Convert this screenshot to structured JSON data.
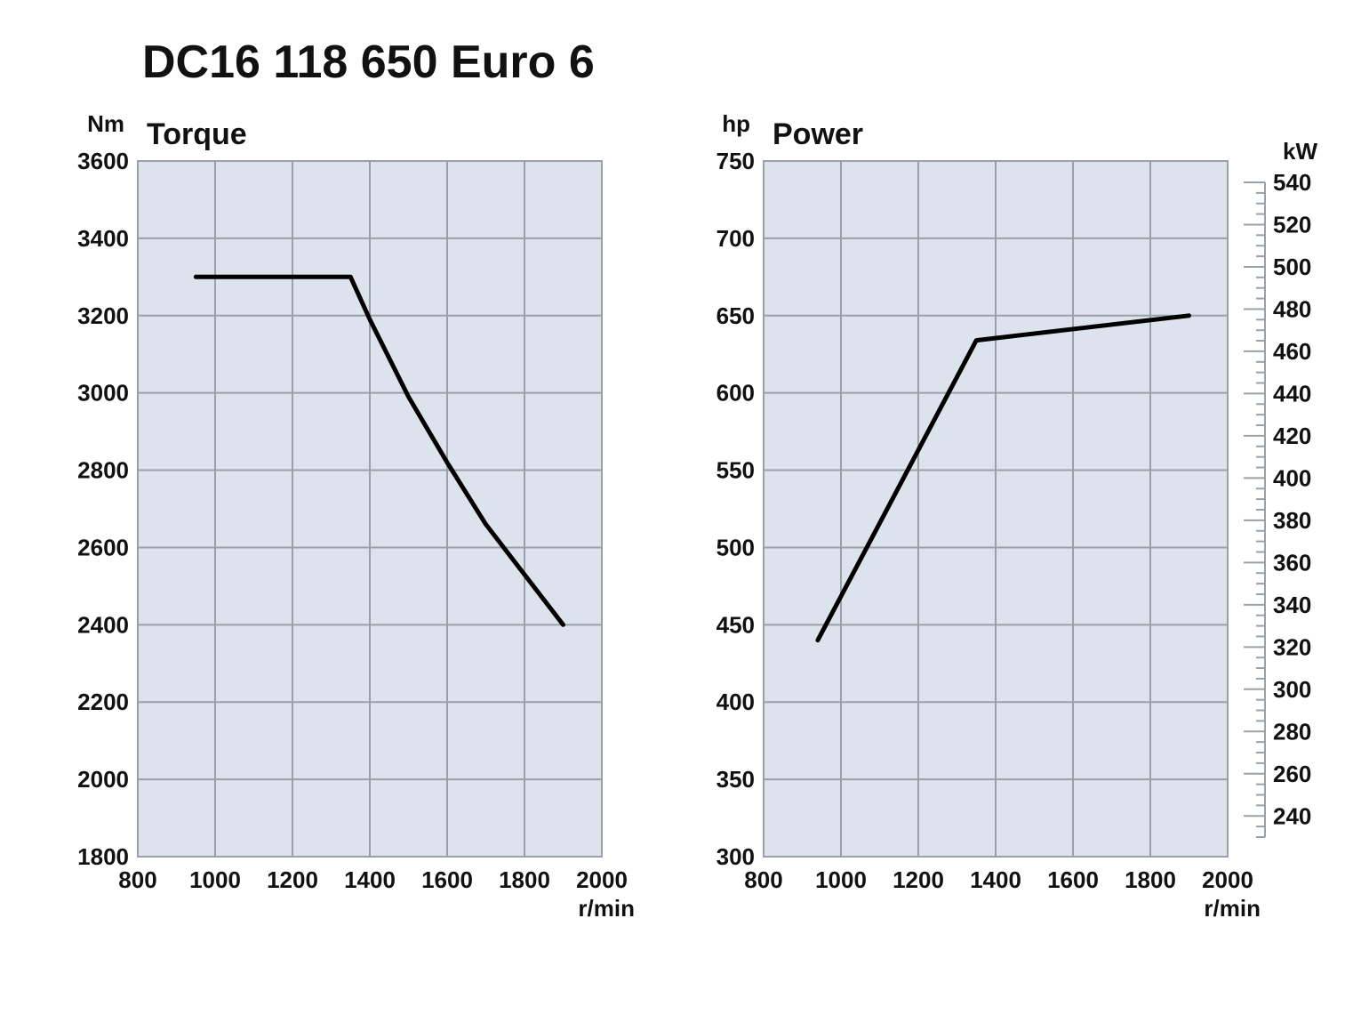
{
  "page": {
    "title": "DC16 118 650 Euro 6"
  },
  "colors": {
    "plot_background": "#dce3ec",
    "grid": "#9aa0a8",
    "curve": "#000000",
    "text": "#111111"
  },
  "chart_data": [
    {
      "type": "line",
      "title": "Torque",
      "ylabel": "Nm",
      "xlabel": "r/min",
      "xlim": [
        800,
        2000
      ],
      "ylim": [
        1800,
        3600
      ],
      "x_ticks": [
        800,
        1000,
        1200,
        1400,
        1600,
        1800,
        2000
      ],
      "y_ticks": [
        1800,
        2000,
        2200,
        2400,
        2600,
        2800,
        3000,
        3200,
        3400,
        3600
      ],
      "grid": true,
      "series": [
        {
          "x": [
            950,
            1350,
            1400,
            1500,
            1600,
            1700,
            1800,
            1900
          ],
          "y": [
            3300,
            3300,
            3190,
            2990,
            2820,
            2660,
            2530,
            2400
          ]
        }
      ]
    },
    {
      "type": "line",
      "title": "Power",
      "ylabel": "hp",
      "y2label": "kW",
      "xlabel": "r/min",
      "xlim": [
        800,
        2000
      ],
      "ylim": [
        300,
        750
      ],
      "x_ticks": [
        800,
        1000,
        1200,
        1400,
        1600,
        1800,
        2000
      ],
      "y_ticks": [
        300,
        350,
        400,
        450,
        500,
        550,
        600,
        650,
        700,
        750
      ],
      "y2_ticks": [
        240,
        260,
        280,
        300,
        320,
        340,
        360,
        380,
        400,
        420,
        440,
        460,
        480,
        500,
        520,
        540
      ],
      "y2_range": [
        230,
        540
      ],
      "grid": true,
      "series": [
        {
          "x": [
            940,
            1350,
            1900
          ],
          "y": [
            440,
            634,
            650
          ]
        }
      ]
    }
  ]
}
